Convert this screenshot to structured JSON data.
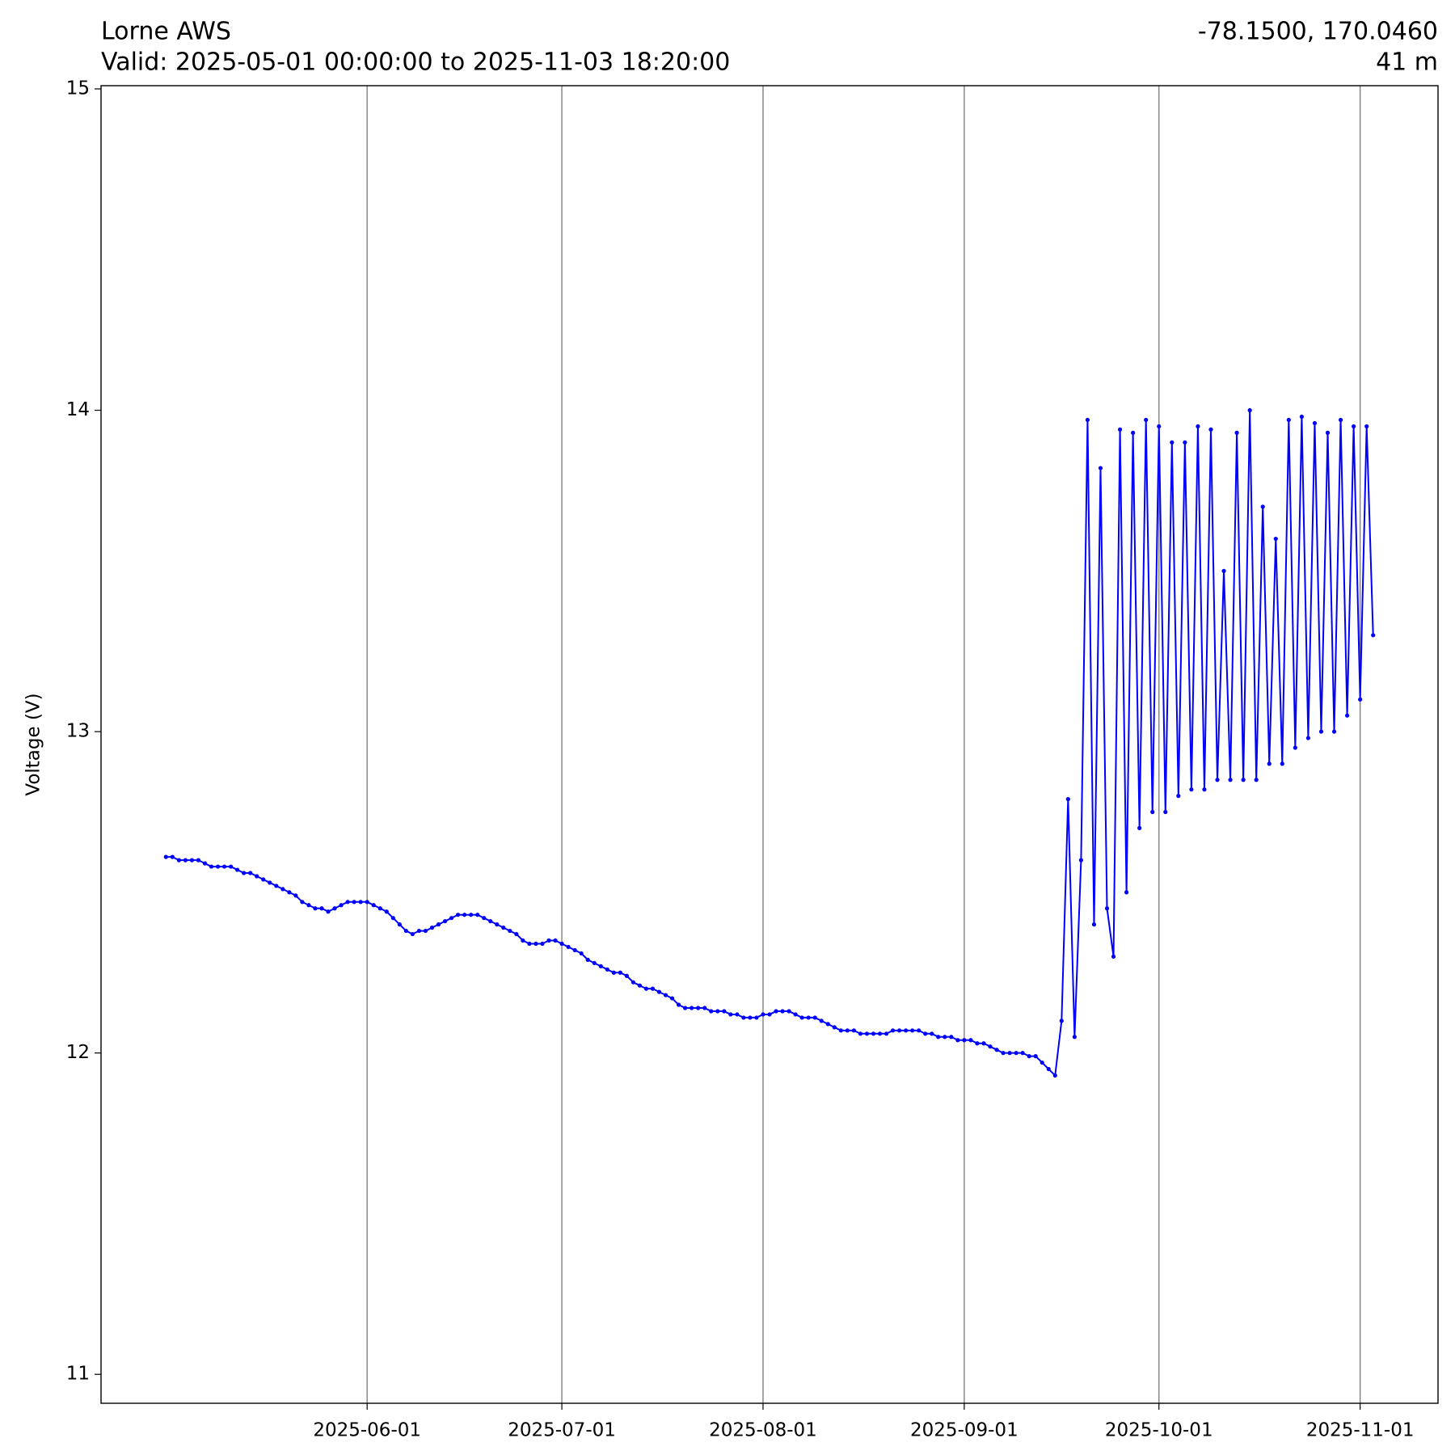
{
  "chart_data": {
    "type": "line",
    "title": "Lorne AWS",
    "subtitle": "Valid: 2025-05-01 00:00:00 to 2025-11-03 18:20:00",
    "location": "-78.1500, 170.0460",
    "elevation": "41 m",
    "y_label": "Voltage (V)",
    "grid": true,
    "xlim": [
      "2025-04-21",
      "2025-11-13"
    ],
    "xticks": [
      "2025-06-01",
      "2025-07-01",
      "2025-08-01",
      "2025-09-01",
      "2025-10-01",
      "2025-11-01"
    ],
    "ylim": [
      10.91,
      15.01
    ],
    "yticks": [
      11,
      12,
      13,
      14,
      15
    ],
    "x": [
      "2025-05-01",
      "2025-05-02",
      "2025-05-03",
      "2025-05-04",
      "2025-05-05",
      "2025-05-06",
      "2025-05-07",
      "2025-05-08",
      "2025-05-09",
      "2025-05-10",
      "2025-05-11",
      "2025-05-12",
      "2025-05-13",
      "2025-05-14",
      "2025-05-15",
      "2025-05-16",
      "2025-05-17",
      "2025-05-18",
      "2025-05-19",
      "2025-05-20",
      "2025-05-21",
      "2025-05-22",
      "2025-05-23",
      "2025-05-24",
      "2025-05-25",
      "2025-05-26",
      "2025-05-27",
      "2025-05-28",
      "2025-05-29",
      "2025-05-30",
      "2025-05-31",
      "2025-06-01",
      "2025-06-02",
      "2025-06-03",
      "2025-06-04",
      "2025-06-05",
      "2025-06-06",
      "2025-06-07",
      "2025-06-08",
      "2025-06-09",
      "2025-06-10",
      "2025-06-11",
      "2025-06-12",
      "2025-06-13",
      "2025-06-14",
      "2025-06-15",
      "2025-06-16",
      "2025-06-17",
      "2025-06-18",
      "2025-06-19",
      "2025-06-20",
      "2025-06-21",
      "2025-06-22",
      "2025-06-23",
      "2025-06-24",
      "2025-06-25",
      "2025-06-26",
      "2025-06-27",
      "2025-06-28",
      "2025-06-29",
      "2025-06-30",
      "2025-07-01",
      "2025-07-02",
      "2025-07-03",
      "2025-07-04",
      "2025-07-05",
      "2025-07-06",
      "2025-07-07",
      "2025-07-08",
      "2025-07-09",
      "2025-07-10",
      "2025-07-11",
      "2025-07-12",
      "2025-07-13",
      "2025-07-14",
      "2025-07-15",
      "2025-07-16",
      "2025-07-17",
      "2025-07-18",
      "2025-07-19",
      "2025-07-20",
      "2025-07-21",
      "2025-07-22",
      "2025-07-23",
      "2025-07-24",
      "2025-07-25",
      "2025-07-26",
      "2025-07-27",
      "2025-07-28",
      "2025-07-29",
      "2025-07-30",
      "2025-07-31",
      "2025-08-01",
      "2025-08-02",
      "2025-08-03",
      "2025-08-04",
      "2025-08-05",
      "2025-08-06",
      "2025-08-07",
      "2025-08-08",
      "2025-08-09",
      "2025-08-10",
      "2025-08-11",
      "2025-08-12",
      "2025-08-13",
      "2025-08-14",
      "2025-08-15",
      "2025-08-16",
      "2025-08-17",
      "2025-08-18",
      "2025-08-19",
      "2025-08-20",
      "2025-08-21",
      "2025-08-22",
      "2025-08-23",
      "2025-08-24",
      "2025-08-25",
      "2025-08-26",
      "2025-08-27",
      "2025-08-28",
      "2025-08-29",
      "2025-08-30",
      "2025-08-31",
      "2025-09-01",
      "2025-09-02",
      "2025-09-03",
      "2025-09-04",
      "2025-09-05",
      "2025-09-06",
      "2025-09-07",
      "2025-09-08",
      "2025-09-09",
      "2025-09-10",
      "2025-09-11",
      "2025-09-12",
      "2025-09-13",
      "2025-09-14",
      "2025-09-15",
      "2025-09-16",
      "2025-09-17",
      "2025-09-18",
      "2025-09-19",
      "2025-09-20",
      "2025-09-21",
      "2025-09-22",
      "2025-09-23",
      "2025-09-24",
      "2025-09-25",
      "2025-09-26",
      "2025-09-27",
      "2025-09-28",
      "2025-09-29",
      "2025-09-30",
      "2025-10-01",
      "2025-10-02",
      "2025-10-03",
      "2025-10-04",
      "2025-10-05",
      "2025-10-06",
      "2025-10-07",
      "2025-10-08",
      "2025-10-09",
      "2025-10-10",
      "2025-10-11",
      "2025-10-12",
      "2025-10-13",
      "2025-10-14",
      "2025-10-15",
      "2025-10-16",
      "2025-10-17",
      "2025-10-18",
      "2025-10-19",
      "2025-10-20",
      "2025-10-21",
      "2025-10-22",
      "2025-10-23",
      "2025-10-24",
      "2025-10-25",
      "2025-10-26",
      "2025-10-27",
      "2025-10-28",
      "2025-10-29",
      "2025-10-30",
      "2025-10-31",
      "2025-11-01",
      "2025-11-02",
      "2025-11-03"
    ],
    "series": [
      {
        "color": "#0000ff",
        "values": [
          12.61,
          12.61,
          12.6,
          12.6,
          12.6,
          12.6,
          12.59,
          12.58,
          12.58,
          12.58,
          12.58,
          12.57,
          12.56,
          12.56,
          12.55,
          12.54,
          12.53,
          12.52,
          12.51,
          12.5,
          12.49,
          12.47,
          12.46,
          12.45,
          12.45,
          12.44,
          12.45,
          12.46,
          12.47,
          12.47,
          12.47,
          12.47,
          12.46,
          12.45,
          12.44,
          12.42,
          12.4,
          12.38,
          12.37,
          12.38,
          12.38,
          12.39,
          12.4,
          12.41,
          12.42,
          12.43,
          12.43,
          12.43,
          12.43,
          12.42,
          12.41,
          12.4,
          12.39,
          12.38,
          12.37,
          12.35,
          12.34,
          12.34,
          12.34,
          12.35,
          12.35,
          12.34,
          12.33,
          12.32,
          12.31,
          12.29,
          12.28,
          12.27,
          12.26,
          12.25,
          12.25,
          12.24,
          12.22,
          12.21,
          12.2,
          12.2,
          12.19,
          12.18,
          12.17,
          12.15,
          12.14,
          12.14,
          12.14,
          12.14,
          12.13,
          12.13,
          12.13,
          12.12,
          12.12,
          12.11,
          12.11,
          12.11,
          12.12,
          12.12,
          12.13,
          12.13,
          12.13,
          12.12,
          12.11,
          12.11,
          12.11,
          12.1,
          12.09,
          12.08,
          12.07,
          12.07,
          12.07,
          12.06,
          12.06,
          12.06,
          12.06,
          12.06,
          12.07,
          12.07,
          12.07,
          12.07,
          12.07,
          12.06,
          12.06,
          12.05,
          12.05,
          12.05,
          12.04,
          12.04,
          12.04,
          12.03,
          12.03,
          12.02,
          12.01,
          12.0,
          12.0,
          12.0,
          12.0,
          11.99,
          11.99,
          11.97,
          11.95,
          11.93,
          12.1,
          12.79,
          12.05,
          12.6,
          13.97,
          12.4,
          13.82,
          12.45,
          12.3,
          13.94,
          12.5,
          13.93,
          12.7,
          13.97,
          12.75,
          13.95,
          12.75,
          13.9,
          12.8,
          13.9,
          12.82,
          13.95,
          12.82,
          13.94,
          12.85,
          13.5,
          12.85,
          13.93,
          12.85,
          14.0,
          12.85,
          13.7,
          12.9,
          13.6,
          12.9,
          13.97,
          12.95,
          13.98,
          12.98,
          13.96,
          13.0,
          13.93,
          13.0,
          13.97,
          13.05,
          13.95,
          13.1,
          13.95,
          13.3
        ]
      }
    ]
  }
}
